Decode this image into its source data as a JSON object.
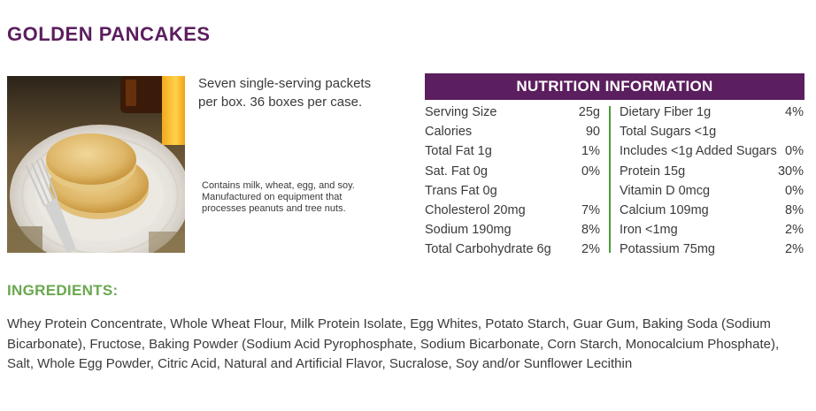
{
  "product": {
    "title": "GOLDEN PANCAKES",
    "description": "Seven single-serving packets per box.  36 boxes per case.",
    "allergen_note": "Contains milk, wheat, egg, and soy.  Manufactured on equipment that processes peanuts and tree nuts."
  },
  "nutrition": {
    "header": "NUTRITION INFORMATION",
    "left": [
      {
        "label": "Serving Size",
        "value": "25g"
      },
      {
        "label": "Calories",
        "value": "90"
      },
      {
        "label": "Total Fat 1g",
        "value": "1%"
      },
      {
        "label": "Sat. Fat 0g",
        "value": "0%"
      },
      {
        "label": "Trans Fat 0g",
        "value": ""
      },
      {
        "label": "Cholesterol 20mg",
        "value": "7%"
      },
      {
        "label": "Sodium 190mg",
        "value": "8%"
      },
      {
        "label": "Total Carbohydrate 6g",
        "value": "2%"
      }
    ],
    "right": [
      {
        "label": "Dietary Fiber 1g",
        "value": "4%"
      },
      {
        "label": "Total Sugars <1g",
        "value": ""
      },
      {
        "label": "Includes <1g Added Sugars",
        "value": "0%"
      },
      {
        "label": "Protein 15g",
        "value": "30%"
      },
      {
        "label": "Vitamin D 0mcg",
        "value": "0%"
      },
      {
        "label": "Calcium 109mg",
        "value": "8%"
      },
      {
        "label": "Iron <1mg",
        "value": "2%"
      },
      {
        "label": "Potassium 75mg",
        "value": "2%"
      }
    ]
  },
  "ingredients": {
    "title": "INGREDIENTS:",
    "text": "Whey Protein Concentrate, Whole Wheat Flour, Milk Protein Isolate, Egg Whites, Potato Starch, Guar Gum,  Baking Soda (Sodium Bicarbonate), Fructose, Baking Powder (Sodium Acid Pyrophosphate, Sodium Bicarbonate, Corn Starch, Monocalcium Phosphate), Salt, Whole Egg Powder, Citric Acid, Natural and Artificial Flavor, Sucralose, Soy and/or Sunflower Lecithin"
  },
  "colors": {
    "brand_purple": "#5b1e5e",
    "accent_green": "#6aa84f",
    "divider_green": "#4a9a3c"
  }
}
